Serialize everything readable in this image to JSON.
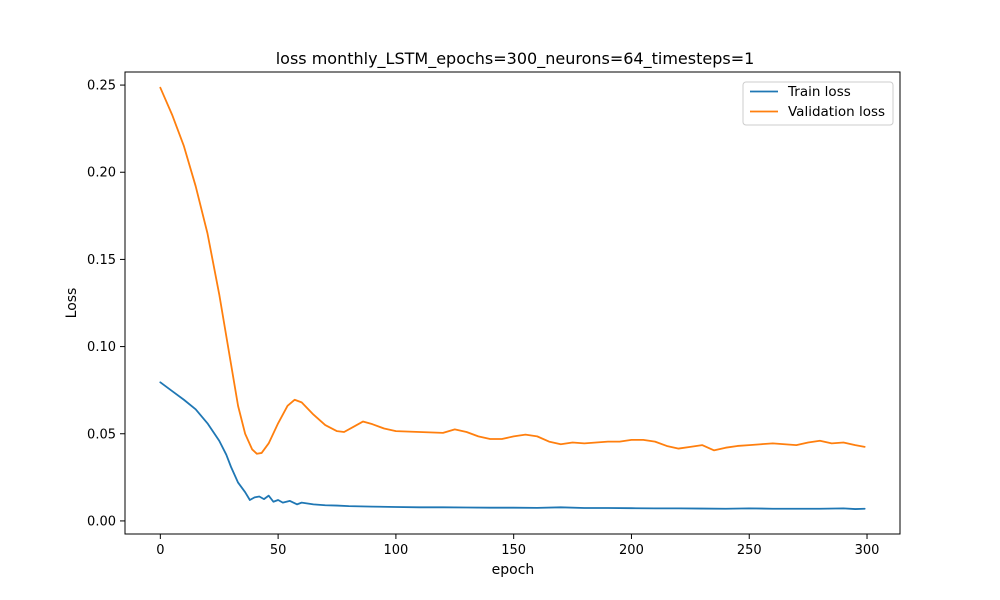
{
  "chart_data": {
    "type": "line",
    "title": "loss monthly_LSTM_epochs=300_neurons=64_timesteps=1",
    "xlabel": "epoch",
    "ylabel": "Loss",
    "xlim": [
      -15,
      314
    ],
    "ylim": [
      -0.0075,
      0.2575
    ],
    "xticks": [
      0,
      50,
      100,
      150,
      200,
      250,
      300
    ],
    "yticks": [
      0.0,
      0.05,
      0.1,
      0.15,
      0.2,
      0.25
    ],
    "ytick_labels": [
      "0.00",
      "0.05",
      "0.10",
      "0.15",
      "0.20",
      "0.25"
    ],
    "grid": false,
    "legend_position": "top-right",
    "series": [
      {
        "name": "Train loss",
        "color": "#1f77b4",
        "points": [
          [
            0,
            0.0795
          ],
          [
            5,
            0.0745
          ],
          [
            10,
            0.0695
          ],
          [
            15,
            0.064
          ],
          [
            20,
            0.056
          ],
          [
            25,
            0.046
          ],
          [
            28,
            0.038
          ],
          [
            30,
            0.031
          ],
          [
            33,
            0.022
          ],
          [
            36,
            0.0165
          ],
          [
            38,
            0.012
          ],
          [
            40,
            0.0135
          ],
          [
            42,
            0.014
          ],
          [
            44,
            0.0125
          ],
          [
            46,
            0.0145
          ],
          [
            48,
            0.011
          ],
          [
            50,
            0.012
          ],
          [
            52,
            0.0105
          ],
          [
            55,
            0.0115
          ],
          [
            58,
            0.0095
          ],
          [
            60,
            0.0105
          ],
          [
            65,
            0.0095
          ],
          [
            70,
            0.009
          ],
          [
            75,
            0.0088
          ],
          [
            80,
            0.0085
          ],
          [
            90,
            0.0082
          ],
          [
            100,
            0.008
          ],
          [
            110,
            0.0078
          ],
          [
            120,
            0.0078
          ],
          [
            130,
            0.0077
          ],
          [
            140,
            0.0076
          ],
          [
            150,
            0.0076
          ],
          [
            160,
            0.0075
          ],
          [
            170,
            0.0078
          ],
          [
            180,
            0.0074
          ],
          [
            190,
            0.0074
          ],
          [
            200,
            0.0073
          ],
          [
            210,
            0.0072
          ],
          [
            220,
            0.0072
          ],
          [
            230,
            0.0071
          ],
          [
            240,
            0.007
          ],
          [
            250,
            0.0072
          ],
          [
            260,
            0.007
          ],
          [
            270,
            0.007
          ],
          [
            280,
            0.007
          ],
          [
            290,
            0.0072
          ],
          [
            295,
            0.0068
          ],
          [
            299,
            0.007
          ]
        ]
      },
      {
        "name": "Validation loss",
        "color": "#ff7f0e",
        "points": [
          [
            0,
            0.2485
          ],
          [
            5,
            0.233
          ],
          [
            10,
            0.215
          ],
          [
            15,
            0.192
          ],
          [
            20,
            0.165
          ],
          [
            25,
            0.13
          ],
          [
            30,
            0.09
          ],
          [
            33,
            0.066
          ],
          [
            36,
            0.05
          ],
          [
            39,
            0.041
          ],
          [
            41,
            0.0385
          ],
          [
            43,
            0.039
          ],
          [
            46,
            0.0445
          ],
          [
            50,
            0.056
          ],
          [
            54,
            0.066
          ],
          [
            57,
            0.0695
          ],
          [
            60,
            0.068
          ],
          [
            65,
            0.061
          ],
          [
            70,
            0.055
          ],
          [
            75,
            0.0515
          ],
          [
            78,
            0.051
          ],
          [
            82,
            0.054
          ],
          [
            86,
            0.057
          ],
          [
            90,
            0.0555
          ],
          [
            95,
            0.053
          ],
          [
            100,
            0.0515
          ],
          [
            110,
            0.051
          ],
          [
            120,
            0.0505
          ],
          [
            125,
            0.0525
          ],
          [
            130,
            0.051
          ],
          [
            135,
            0.0485
          ],
          [
            140,
            0.047
          ],
          [
            145,
            0.047
          ],
          [
            150,
            0.0485
          ],
          [
            155,
            0.0495
          ],
          [
            160,
            0.0485
          ],
          [
            165,
            0.0455
          ],
          [
            170,
            0.044
          ],
          [
            175,
            0.045
          ],
          [
            180,
            0.0445
          ],
          [
            185,
            0.045
          ],
          [
            190,
            0.0455
          ],
          [
            195,
            0.0455
          ],
          [
            200,
            0.0465
          ],
          [
            205,
            0.0465
          ],
          [
            210,
            0.0455
          ],
          [
            215,
            0.043
          ],
          [
            220,
            0.0415
          ],
          [
            225,
            0.0425
          ],
          [
            230,
            0.0435
          ],
          [
            235,
            0.0405
          ],
          [
            240,
            0.042
          ],
          [
            245,
            0.043
          ],
          [
            250,
            0.0435
          ],
          [
            255,
            0.044
          ],
          [
            260,
            0.0445
          ],
          [
            265,
            0.044
          ],
          [
            270,
            0.0435
          ],
          [
            275,
            0.045
          ],
          [
            280,
            0.046
          ],
          [
            285,
            0.0445
          ],
          [
            290,
            0.045
          ],
          [
            295,
            0.0435
          ],
          [
            299,
            0.0425
          ]
        ]
      }
    ]
  }
}
